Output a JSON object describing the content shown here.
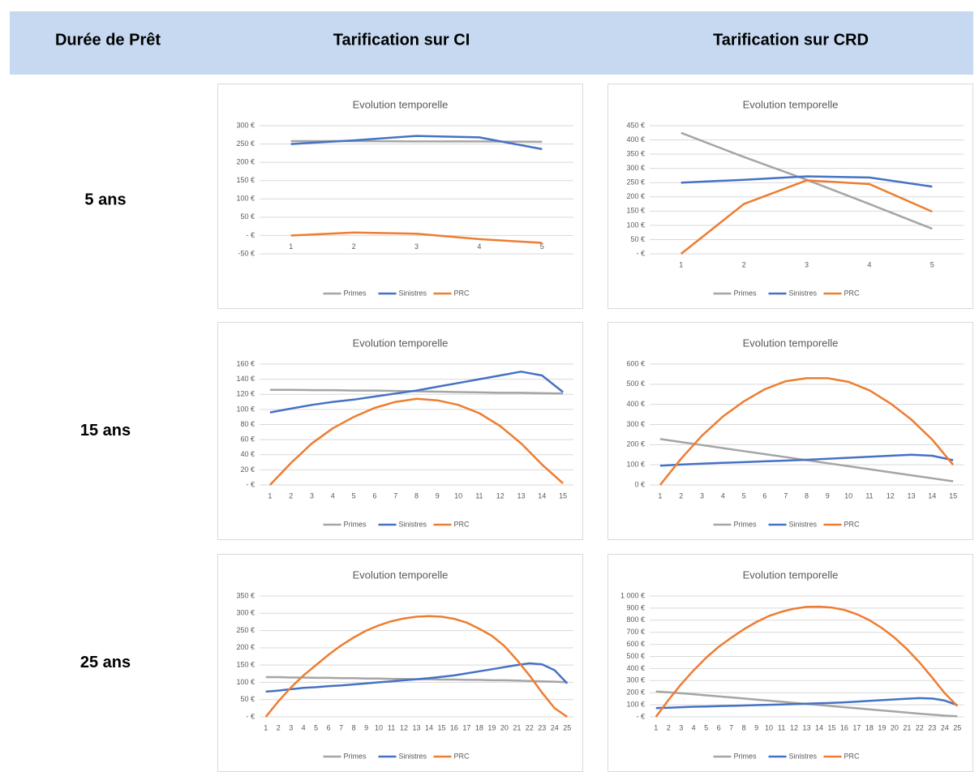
{
  "table": {
    "headers": [
      "Durée de Prêt",
      "Tarification sur CI",
      "Tarification sur CRD"
    ],
    "rows": [
      {
        "label": "5 ans",
        "charts": [
          {
            "type": "line",
            "title": "Evolution temporelle",
            "categories": [
              1,
              2,
              3,
              4,
              5
            ],
            "series": [
              {
                "name": "Primes",
                "color": "#a5a5a5",
                "values": [
                  258,
                  258,
                  257,
                  257,
                  256
                ]
              },
              {
                "name": "Sinistres",
                "color": "#4472c4",
                "values": [
                  250,
                  260,
                  272,
                  268,
                  236
                ]
              },
              {
                "name": "PRC",
                "color": "#ed7d31",
                "values": [
                  0,
                  8,
                  5,
                  -10,
                  -20
                ]
              }
            ],
            "ylim": [
              -50,
              300
            ],
            "yticks": [
              {
                "value": -50,
                "label": "-50 €"
              },
              {
                "value": 0,
                "label": "- €"
              },
              {
                "value": 50,
                "label": "50 €"
              },
              {
                "value": 100,
                "label": "100 €"
              },
              {
                "value": 150,
                "label": "150 €"
              },
              {
                "value": 200,
                "label": "200 €"
              },
              {
                "value": 250,
                "label": "250 €"
              },
              {
                "value": 300,
                "label": "300 €"
              }
            ],
            "grid": true
          },
          {
            "type": "line",
            "title": "Evolution temporelle",
            "categories": [
              1,
              2,
              3,
              4,
              5
            ],
            "series": [
              {
                "name": "Primes",
                "color": "#a5a5a5",
                "values": [
                  425,
                  340,
                  260,
                  175,
                  88
                ]
              },
              {
                "name": "Sinistres",
                "color": "#4472c4",
                "values": [
                  250,
                  260,
                  272,
                  268,
                  236
                ]
              },
              {
                "name": "PRC",
                "color": "#ed7d31",
                "values": [
                  0,
                  175,
                  258,
                  245,
                  148
                ]
              }
            ],
            "ylim": [
              0,
              450
            ],
            "yticks": [
              {
                "value": 0,
                "label": "- €"
              },
              {
                "value": 50,
                "label": "50 €"
              },
              {
                "value": 100,
                "label": "100 €"
              },
              {
                "value": 150,
                "label": "150 €"
              },
              {
                "value": 200,
                "label": "200 €"
              },
              {
                "value": 250,
                "label": "250 €"
              },
              {
                "value": 300,
                "label": "300 €"
              },
              {
                "value": 350,
                "label": "350 €"
              },
              {
                "value": 400,
                "label": "400 €"
              },
              {
                "value": 450,
                "label": "450 €"
              }
            ],
            "grid": true
          }
        ]
      },
      {
        "label": "15 ans",
        "charts": [
          {
            "type": "line",
            "title": "Evolution temporelle",
            "categories": [
              1,
              2,
              3,
              4,
              5,
              6,
              7,
              8,
              9,
              10,
              11,
              12,
              13,
              14,
              15
            ],
            "series": [
              {
                "name": "Primes",
                "color": "#a5a5a5",
                "values": [
                  126,
                  126,
                  125.5,
                  125.5,
                  125,
                  125,
                  124.5,
                  124,
                  123.5,
                  123,
                  122.5,
                  122,
                  122,
                  121.5,
                  121
                ]
              },
              {
                "name": "Sinistres",
                "color": "#4472c4",
                "values": [
                  96,
                  101,
                  106,
                  110,
                  113,
                  117,
                  121,
                  125,
                  130,
                  135,
                  140,
                  145,
                  150,
                  145,
                  123
                ]
              },
              {
                "name": "PRC",
                "color": "#ed7d31",
                "values": [
                  0,
                  29,
                  55,
                  75,
                  90,
                  102,
                  110,
                  114,
                  112,
                  106,
                  95,
                  78,
                  55,
                  27,
                  2
                ]
              }
            ],
            "ylim": [
              0,
              160
            ],
            "yticks": [
              {
                "value": 0,
                "label": "- €"
              },
              {
                "value": 20,
                "label": "20 €"
              },
              {
                "value": 40,
                "label": "40 €"
              },
              {
                "value": 60,
                "label": "60 €"
              },
              {
                "value": 80,
                "label": "80 €"
              },
              {
                "value": 100,
                "label": "100 €"
              },
              {
                "value": 120,
                "label": "120 €"
              },
              {
                "value": 140,
                "label": "140 €"
              },
              {
                "value": 160,
                "label": "160 €"
              }
            ],
            "grid": true
          },
          {
            "type": "line",
            "title": "Evolution temporelle",
            "categories": [
              1,
              2,
              3,
              4,
              5,
              6,
              7,
              8,
              9,
              10,
              11,
              12,
              13,
              14,
              15
            ],
            "series": [
              {
                "name": "Primes",
                "color": "#a5a5a5",
                "values": [
                  228,
                  213,
                  198,
                  183,
                  168,
                  153,
                  138,
                  123,
                  108,
                  93,
                  78,
                  63,
                  48,
                  33,
                  18
                ]
              },
              {
                "name": "Sinistres",
                "color": "#4472c4",
                "values": [
                  96,
                  101,
                  106,
                  110,
                  113,
                  117,
                  121,
                  125,
                  130,
                  135,
                  140,
                  145,
                  150,
                  145,
                  123
                ]
              },
              {
                "name": "PRC",
                "color": "#ed7d31",
                "values": [
                  0,
                  130,
                  245,
                  340,
                  415,
                  475,
                  515,
                  530,
                  530,
                  512,
                  470,
                  405,
                  325,
                  225,
                  100
                ]
              }
            ],
            "ylim": [
              0,
              600
            ],
            "yticks": [
              {
                "value": 0,
                "label": "0 €"
              },
              {
                "value": 100,
                "label": "100 €"
              },
              {
                "value": 200,
                "label": "200 €"
              },
              {
                "value": 300,
                "label": "300 €"
              },
              {
                "value": 400,
                "label": "400 €"
              },
              {
                "value": 500,
                "label": "500 €"
              },
              {
                "value": 600,
                "label": "600 €"
              }
            ],
            "grid": true
          }
        ]
      },
      {
        "label": "25 ans",
        "charts": [
          {
            "type": "line",
            "title": "Evolution temporelle",
            "categories": [
              1,
              2,
              3,
              4,
              5,
              6,
              7,
              8,
              9,
              10,
              11,
              12,
              13,
              14,
              15,
              16,
              17,
              18,
              19,
              20,
              21,
              22,
              23,
              24,
              25
            ],
            "series": [
              {
                "name": "Primes",
                "color": "#a5a5a5",
                "values": [
                  115,
                  115,
                  114,
                  114,
                  113,
                  113,
                  112,
                  112,
                  111,
                  111,
                  110,
                  110,
                  109,
                  109,
                  108,
                  108,
                  107,
                  107,
                  106,
                  106,
                  105,
                  104,
                  103,
                  102,
                  100
                ]
              },
              {
                "name": "Sinistres",
                "color": "#4472c4",
                "values": [
                  73,
                  76,
                  80,
                  84,
                  86,
                  89,
                  91,
                  94,
                  97,
                  100,
                  103,
                  106,
                  109,
                  112,
                  116,
                  120,
                  126,
                  132,
                  138,
                  144,
                  150,
                  155,
                  152,
                  135,
                  97
                ]
              },
              {
                "name": "PRC",
                "color": "#ed7d31",
                "values": [
                  0,
                  45,
                  85,
                  120,
                  150,
                  180,
                  207,
                  230,
                  250,
                  265,
                  277,
                  285,
                  290,
                  292,
                  290,
                  284,
                  273,
                  255,
                  235,
                  205,
                  165,
                  120,
                  70,
                  25,
                  0
                ]
              }
            ],
            "ylim": [
              0,
              350
            ],
            "yticks": [
              {
                "value": 0,
                "label": "- €"
              },
              {
                "value": 50,
                "label": "50 €"
              },
              {
                "value": 100,
                "label": "100 €"
              },
              {
                "value": 150,
                "label": "150 €"
              },
              {
                "value": 200,
                "label": "200 €"
              },
              {
                "value": 250,
                "label": "250 €"
              },
              {
                "value": 300,
                "label": "300 €"
              },
              {
                "value": 350,
                "label": "350 €"
              }
            ],
            "grid": true
          },
          {
            "type": "line",
            "title": "Evolution temporelle",
            "categories": [
              1,
              2,
              3,
              4,
              5,
              6,
              7,
              8,
              9,
              10,
              11,
              12,
              13,
              14,
              15,
              16,
              17,
              18,
              19,
              20,
              21,
              22,
              23,
              24,
              25
            ],
            "series": [
              {
                "name": "Primes",
                "color": "#a5a5a5",
                "values": [
                  210,
                  203,
                  195,
                  187,
                  178,
                  170,
                  161,
                  152,
                  143,
                  134,
                  125,
                  116,
                  107,
                  98,
                  89,
                  80,
                  71,
                  62,
                  53,
                  44,
                  35,
                  26,
                  18,
                  10,
                  5
                ]
              },
              {
                "name": "Sinistres",
                "color": "#4472c4",
                "values": [
                  73,
                  76,
                  80,
                  84,
                  86,
                  89,
                  91,
                  94,
                  97,
                  100,
                  103,
                  106,
                  109,
                  112,
                  116,
                  120,
                  126,
                  132,
                  138,
                  144,
                  150,
                  155,
                  152,
                  135,
                  97
                ]
              },
              {
                "name": "PRC",
                "color": "#ed7d31",
                "values": [
                  0,
                  140,
                  270,
                  385,
                  490,
                  580,
                  655,
                  725,
                  785,
                  835,
                  870,
                  895,
                  910,
                  912,
                  905,
                  885,
                  850,
                  800,
                  735,
                  655,
                  560,
                  450,
                  325,
                  195,
                  90
                ]
              }
            ],
            "ylim": [
              0,
              1000
            ],
            "yticks": [
              {
                "value": 0,
                "label": "- €"
              },
              {
                "value": 100,
                "label": "100 €"
              },
              {
                "value": 200,
                "label": "200 €"
              },
              {
                "value": 300,
                "label": "300 €"
              },
              {
                "value": 400,
                "label": "400 €"
              },
              {
                "value": 500,
                "label": "500 €"
              },
              {
                "value": 600,
                "label": "600 €"
              },
              {
                "value": 700,
                "label": "700 €"
              },
              {
                "value": 800,
                "label": "800 €"
              },
              {
                "value": 900,
                "label": "900 €"
              },
              {
                "value": 1000,
                "label": "1 000 €"
              }
            ],
            "grid": true
          }
        ]
      }
    ]
  }
}
